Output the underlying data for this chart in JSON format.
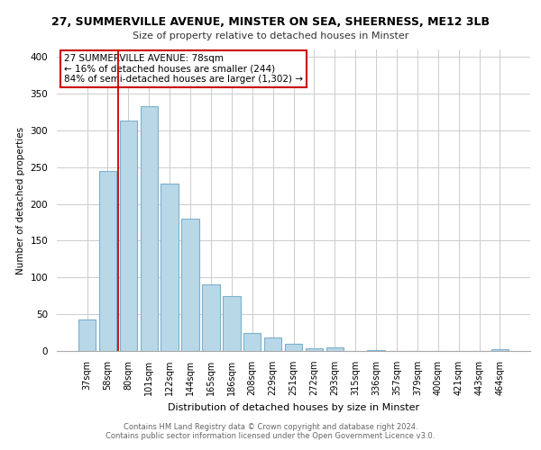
{
  "title": "27, SUMMERVILLE AVENUE, MINSTER ON SEA, SHEERNESS, ME12 3LB",
  "subtitle": "Size of property relative to detached houses in Minster",
  "xlabel": "Distribution of detached houses by size in Minster",
  "ylabel": "Number of detached properties",
  "bar_labels": [
    "37sqm",
    "58sqm",
    "80sqm",
    "101sqm",
    "122sqm",
    "144sqm",
    "165sqm",
    "186sqm",
    "208sqm",
    "229sqm",
    "251sqm",
    "272sqm",
    "293sqm",
    "315sqm",
    "336sqm",
    "357sqm",
    "379sqm",
    "400sqm",
    "421sqm",
    "443sqm",
    "464sqm"
  ],
  "bar_values": [
    43,
    245,
    313,
    333,
    228,
    180,
    91,
    75,
    25,
    18,
    10,
    4,
    5,
    0,
    1,
    0,
    0,
    0,
    0,
    0,
    2
  ],
  "bar_color": "#b8d8e8",
  "bar_edge_color": "#7db0cc",
  "marker_bar_index": 2,
  "annotation_title": "27 SUMMERVILLE AVENUE: 78sqm",
  "annotation_line1": "← 16% of detached houses are smaller (244)",
  "annotation_line2": "84% of semi-detached houses are larger (1,302) →",
  "marker_color": "#cc0000",
  "ylim": [
    0,
    410
  ],
  "yticks": [
    0,
    50,
    100,
    150,
    200,
    250,
    300,
    350,
    400
  ],
  "footer_line1": "Contains HM Land Registry data © Crown copyright and database right 2024.",
  "footer_line2": "Contains public sector information licensed under the Open Government Licence v3.0.",
  "background_color": "#ffffff",
  "grid_color": "#cccccc"
}
